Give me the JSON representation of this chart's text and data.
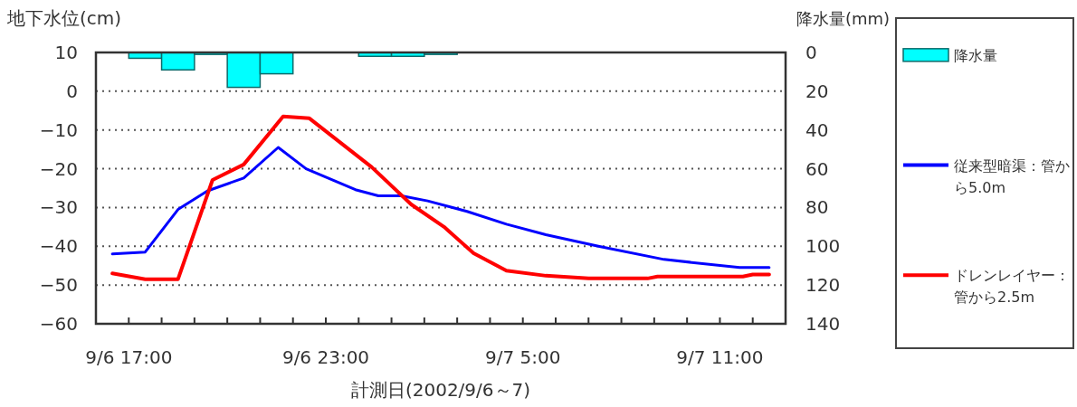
{
  "chart_data": {
    "type": "line",
    "xlabel": "計測日(2002/9/6～7)",
    "ylabel": "地下水位(cm)",
    "y2label": "降水量(mm)",
    "xlim": [
      "2002-09-06T16:00",
      "2002-09-07T13:00"
    ],
    "xticks": [
      {
        "value": "2002-09-06T17:00",
        "label": "9/6 17:00"
      },
      {
        "value": "2002-09-06T18:00",
        "label": null
      },
      {
        "value": "2002-09-06T19:00",
        "label": null
      },
      {
        "value": "2002-09-06T20:00",
        "label": null
      },
      {
        "value": "2002-09-06T21:00",
        "label": null
      },
      {
        "value": "2002-09-06T22:00",
        "label": null
      },
      {
        "value": "2002-09-06T23:00",
        "label": "9/6 23:00"
      },
      {
        "value": "2002-09-07T00:00",
        "label": null
      },
      {
        "value": "2002-09-07T01:00",
        "label": null
      },
      {
        "value": "2002-09-07T02:00",
        "label": null
      },
      {
        "value": "2002-09-07T03:00",
        "label": null
      },
      {
        "value": "2002-09-07T04:00",
        "label": null
      },
      {
        "value": "2002-09-07T05:00",
        "label": "9/7 5:00"
      },
      {
        "value": "2002-09-07T06:00",
        "label": null
      },
      {
        "value": "2002-09-07T07:00",
        "label": null
      },
      {
        "value": "2002-09-07T08:00",
        "label": null
      },
      {
        "value": "2002-09-07T09:00",
        "label": null
      },
      {
        "value": "2002-09-07T10:00",
        "label": null
      },
      {
        "value": "2002-09-07T11:00",
        "label": "9/7 11:00"
      },
      {
        "value": "2002-09-07T12:00",
        "label": null
      }
    ],
    "ylim": [
      -60,
      10
    ],
    "yticks": [
      -60,
      -50,
      -40,
      -30,
      -20,
      -10,
      0,
      10
    ],
    "y2lim": [
      140,
      0
    ],
    "y2ticks": [
      0,
      20,
      40,
      60,
      80,
      100,
      120,
      140
    ],
    "grid": "y",
    "legend": "right",
    "series": [
      {
        "name": "降水量",
        "type": "bar",
        "axis": "y2",
        "color": "#00ffff",
        "x": [
          "2002-09-06T17:30",
          "2002-09-06T18:30",
          "2002-09-06T19:30",
          "2002-09-06T20:30",
          "2002-09-06T21:30",
          "2002-09-07T00:30",
          "2002-09-07T01:30",
          "2002-09-07T02:30"
        ],
        "values": [
          3,
          9,
          1,
          18,
          11,
          2,
          2,
          1
        ]
      },
      {
        "name": "従来型暗渠：管から5.0m",
        "color": "#0000ff",
        "x": [
          "2002-09-06T16:30",
          "2002-09-06T17:30",
          "2002-09-06T18:30",
          "2002-09-06T19:24",
          "2002-09-06T20:30",
          "2002-09-06T21:33",
          "2002-09-06T22:24",
          "2002-09-06T23:54",
          "2002-09-07T00:36",
          "2002-09-07T01:18",
          "2002-09-07T02:06",
          "2002-09-07T03:18",
          "2002-09-07T04:30",
          "2002-09-07T05:42",
          "2002-09-07T07:18",
          "2002-09-07T09:18",
          "2002-09-07T11:36",
          "2002-09-07T12:30"
        ],
        "values": [
          -42,
          -41.5,
          -30.5,
          -25.7,
          -22.4,
          -14.5,
          -20,
          -25.4,
          -27,
          -27,
          -28.3,
          -31,
          -34.3,
          -37,
          -40,
          -43.4,
          -45.5,
          -45.5
        ]
      },
      {
        "name": "ドレンレイヤー：管から2.5m",
        "color": "#ff0000",
        "x": [
          "2002-09-06T16:30",
          "2002-09-06T17:30",
          "2002-09-06T18:30",
          "2002-09-06T19:33",
          "2002-09-06T20:30",
          "2002-09-06T21:42",
          "2002-09-06T22:30",
          "2002-09-07T00:24",
          "2002-09-07T01:36",
          "2002-09-07T02:36",
          "2002-09-07T03:30",
          "2002-09-07T04:30",
          "2002-09-07T05:42",
          "2002-09-07T07:00",
          "2002-09-07T08:48",
          "2002-09-07T09:06",
          "2002-09-07T11:42",
          "2002-09-07T12:00",
          "2002-09-07T12:30"
        ],
        "values": [
          -47,
          -48.5,
          -48.5,
          -22.9,
          -18.9,
          -6.5,
          -7,
          -19.6,
          -29.2,
          -35,
          -41.8,
          -46.3,
          -47.6,
          -48.3,
          -48.3,
          -47.8,
          -47.8,
          -47.3,
          -47.3
        ]
      }
    ]
  }
}
